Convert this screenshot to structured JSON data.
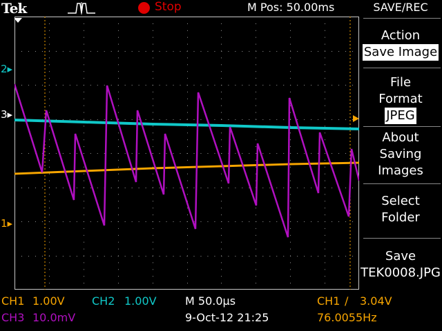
{
  "topbar": {
    "brand": "Tek",
    "run_state": "Stop",
    "m_pos": "M Pos: 50.00ms"
  },
  "menu": {
    "title": "SAVE/REC",
    "action_label": "Action",
    "action_value": "Save Image",
    "file_format_line1": "File",
    "file_format_line2": "Format",
    "file_format_value": "JPEG",
    "about_line1": "About",
    "about_line2": "Saving",
    "about_line3": "Images",
    "select_line1": "Select",
    "select_line2": "Folder",
    "save_line1": "Save",
    "save_line2": "TEK0008.JPG"
  },
  "markers": {
    "ch2": "2",
    "ch3": "3",
    "ch1": "1"
  },
  "status": {
    "ch1_label": "CH1",
    "ch1_scale": "1.00V",
    "ch2_label": "CH2",
    "ch2_scale": "1.00V",
    "ch3_label": "CH3",
    "ch3_scale": "10.0mV",
    "timebase": "M 50.0µs",
    "date_time": "9-Oct-12 21:25",
    "trigger_source": "CH1",
    "trigger_level": "3.04V",
    "frequency": "76.0055Hz"
  },
  "colors": {
    "ch1": "#f7a500",
    "ch2": "#10c8c8",
    "ch3": "#b010c0",
    "grid": "#9a9a9a"
  }
}
